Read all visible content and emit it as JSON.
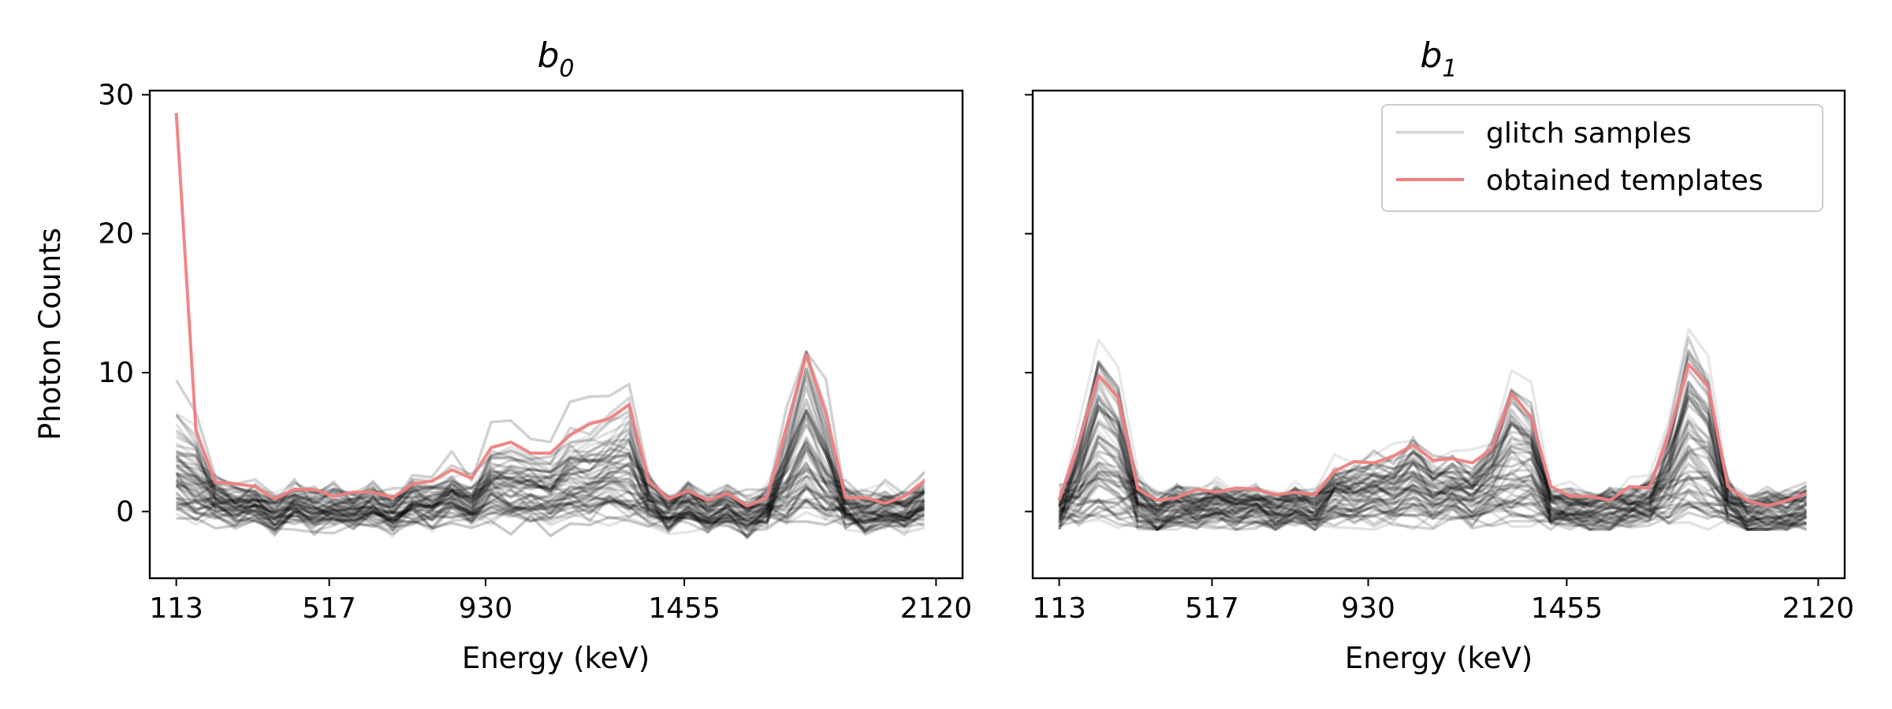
{
  "chart_data": [
    {
      "type": "line",
      "title": "b",
      "title_subscript": "0",
      "xlabel": "Energy (keV)",
      "ylabel": "Photon Counts",
      "xlim": [
        43,
        2190
      ],
      "ylim": [
        -4.8,
        30.3
      ],
      "xticks": [
        113,
        517,
        930,
        1455,
        2120
      ],
      "yticks": [
        0,
        10,
        20,
        30
      ],
      "grid": false,
      "legend": null,
      "x": [
        113,
        165,
        217,
        269,
        321,
        373,
        425,
        477,
        529,
        581,
        633,
        685,
        737,
        789,
        841,
        893,
        945,
        997,
        1049,
        1101,
        1153,
        1205,
        1257,
        1309,
        1361,
        1413,
        1465,
        1517,
        1569,
        1621,
        1673,
        1725,
        1777,
        1829,
        1881,
        1933,
        1985,
        2037,
        2089
      ],
      "series": [
        {
          "role": "template",
          "color": "#f08080",
          "values": [
            28.7,
            5.8,
            2.1,
            2.0,
            1.8,
            0.9,
            1.6,
            1.6,
            1.1,
            1.4,
            1.4,
            1.0,
            2.0,
            2.2,
            3.0,
            2.4,
            4.6,
            5.0,
            4.2,
            4.2,
            5.5,
            6.3,
            6.7,
            7.7,
            2.2,
            0.9,
            1.5,
            0.8,
            1.3,
            0.4,
            1.0,
            6.1,
            11.3,
            7.1,
            1.0,
            1.0,
            0.6,
            1.1,
            2.2
          ]
        }
      ],
      "glitch_samples": {
        "color": "#000000",
        "count": 60,
        "value_range": [
          -3.5,
          11.5
        ]
      }
    },
    {
      "type": "line",
      "title": "b",
      "title_subscript": "1",
      "xlabel": "Energy (keV)",
      "ylabel": "",
      "xlim": [
        43,
        2190
      ],
      "ylim": [
        -4.8,
        30.3
      ],
      "xticks": [
        113,
        517,
        930,
        1455,
        2120
      ],
      "yticks": [
        0,
        10,
        20,
        30
      ],
      "grid": false,
      "legend": {
        "position": "top-right",
        "entries": [
          {
            "label": "glitch samples",
            "color": "#d9d9d9"
          },
          {
            "label": "obtained templates",
            "color": "#f08080"
          }
        ]
      },
      "x": [
        113,
        165,
        217,
        269,
        321,
        373,
        425,
        477,
        529,
        581,
        633,
        685,
        737,
        789,
        841,
        893,
        945,
        997,
        1049,
        1101,
        1153,
        1205,
        1257,
        1309,
        1361,
        1413,
        1465,
        1517,
        1569,
        1621,
        1673,
        1725,
        1777,
        1829,
        1881,
        1933,
        1985,
        2037,
        2089
      ],
      "series": [
        {
          "role": "template",
          "color": "#f08080",
          "values": [
            0.8,
            5.0,
            9.8,
            8.2,
            1.6,
            0.8,
            1.0,
            1.6,
            1.4,
            1.7,
            1.6,
            1.2,
            1.4,
            1.2,
            2.9,
            3.6,
            3.5,
            4.0,
            4.8,
            3.7,
            3.8,
            3.5,
            4.5,
            8.5,
            6.8,
            1.8,
            1.1,
            1.1,
            0.8,
            1.8,
            1.7,
            5.6,
            10.6,
            9.0,
            1.8,
            0.8,
            0.4,
            0.8,
            1.3
          ]
        }
      ],
      "glitch_samples": {
        "color": "#000000",
        "count": 60,
        "value_range": [
          -1.3,
          16.8
        ]
      }
    }
  ]
}
